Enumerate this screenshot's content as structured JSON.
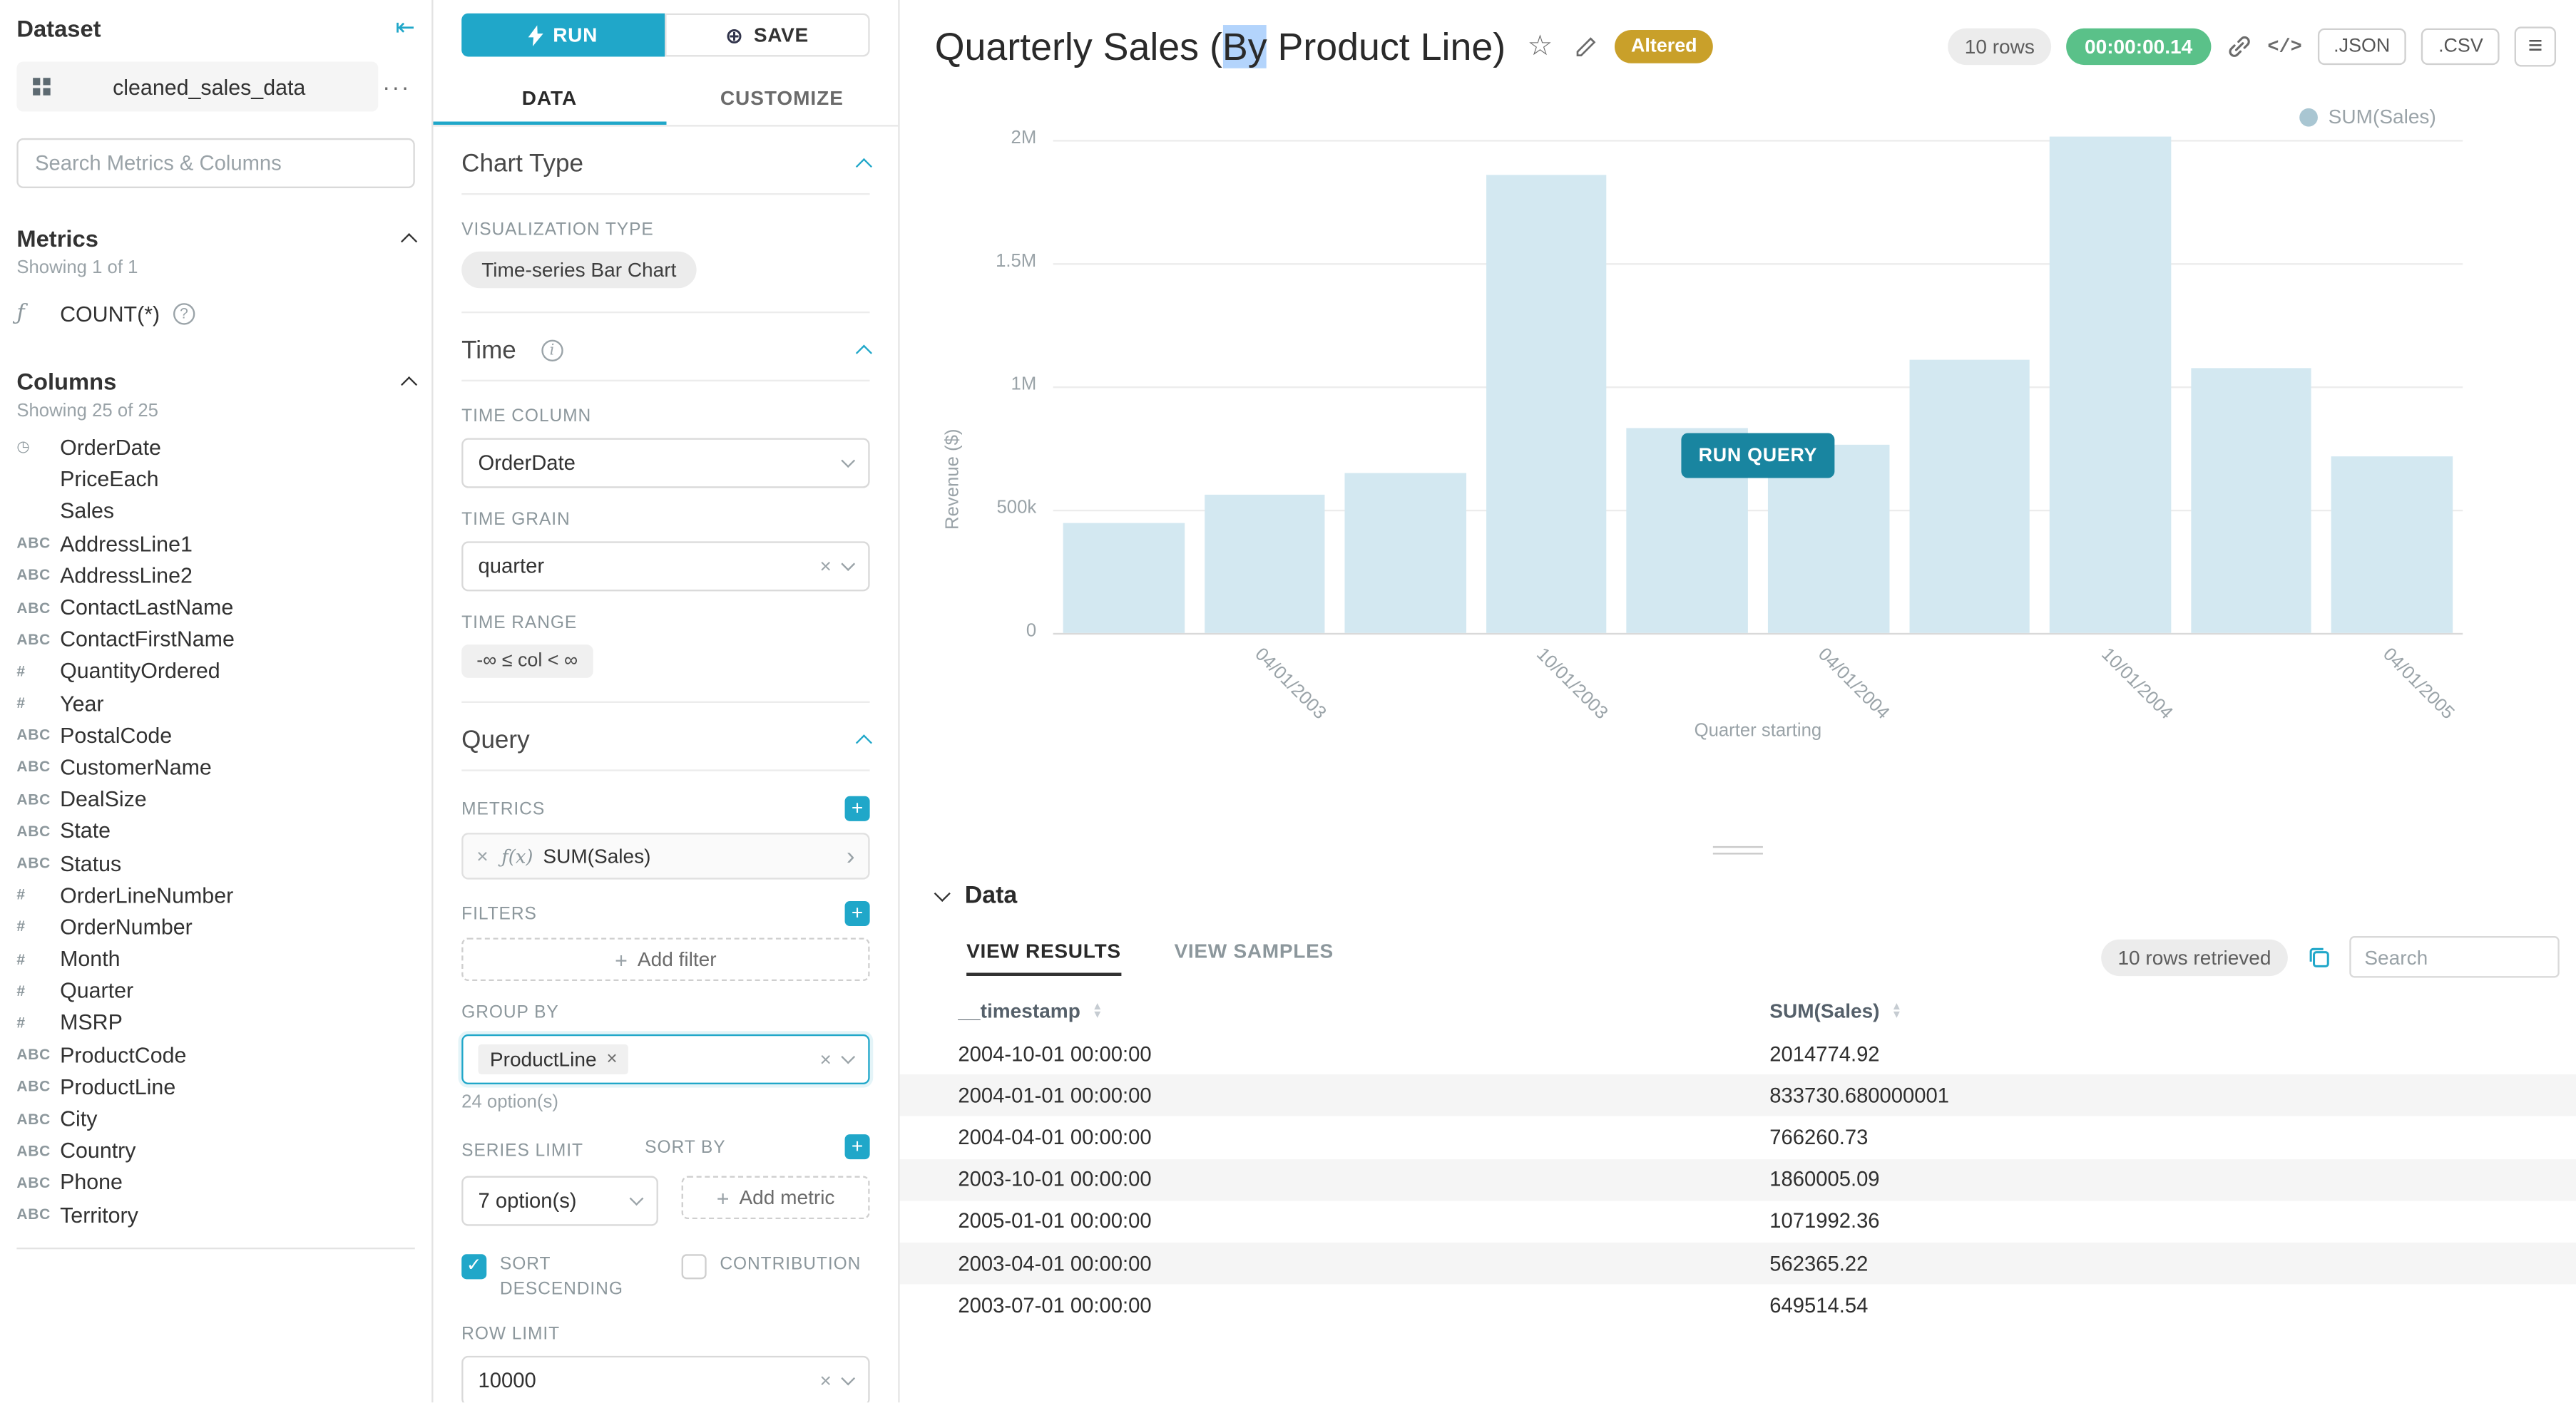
{
  "colors": {
    "primary": "#20a7c9",
    "bar_stale": "#d3e8f1",
    "altered_badge": "#c9a02a",
    "timer_badge": "#5ac189",
    "run_query_button": "#1985a0"
  },
  "dataset_panel": {
    "header": "Dataset",
    "dataset_name": "cleaned_sales_data",
    "search_placeholder": "Search Metrics & Columns",
    "metrics": {
      "header": "Metrics",
      "showing": "Showing 1 of 1",
      "items": [
        {
          "icon": "ƒ",
          "label": "COUNT(*)",
          "help": "?"
        }
      ]
    },
    "columns": {
      "header": "Columns",
      "showing": "Showing 25 of 25",
      "items": [
        {
          "icon": "◷",
          "label": "OrderDate"
        },
        {
          "icon": "",
          "label": "PriceEach"
        },
        {
          "icon": "",
          "label": "Sales"
        },
        {
          "icon": "ABC",
          "label": "AddressLine1"
        },
        {
          "icon": "ABC",
          "label": "AddressLine2"
        },
        {
          "icon": "ABC",
          "label": "ContactLastName"
        },
        {
          "icon": "ABC",
          "label": "ContactFirstName"
        },
        {
          "icon": "#",
          "label": "QuantityOrdered"
        },
        {
          "icon": "#",
          "label": "Year"
        },
        {
          "icon": "ABC",
          "label": "PostalCode"
        },
        {
          "icon": "ABC",
          "label": "CustomerName"
        },
        {
          "icon": "ABC",
          "label": "DealSize"
        },
        {
          "icon": "ABC",
          "label": "State"
        },
        {
          "icon": "ABC",
          "label": "Status"
        },
        {
          "icon": "#",
          "label": "OrderLineNumber"
        },
        {
          "icon": "#",
          "label": "OrderNumber"
        },
        {
          "icon": "#",
          "label": "Month"
        },
        {
          "icon": "#",
          "label": "Quarter"
        },
        {
          "icon": "#",
          "label": "MSRP"
        },
        {
          "icon": "ABC",
          "label": "ProductCode"
        },
        {
          "icon": "ABC",
          "label": "ProductLine"
        },
        {
          "icon": "ABC",
          "label": "City"
        },
        {
          "icon": "ABC",
          "label": "Country"
        },
        {
          "icon": "ABC",
          "label": "Phone"
        },
        {
          "icon": "ABC",
          "label": "Territory"
        }
      ]
    }
  },
  "controls": {
    "run_label": "RUN",
    "save_label": "SAVE",
    "tabs": {
      "data": "DATA",
      "customize": "CUSTOMIZE"
    },
    "chart_type": {
      "header": "Chart Type",
      "viz_type_label": "VISUALIZATION TYPE",
      "viz_type_value": "Time-series Bar Chart"
    },
    "time": {
      "header": "Time",
      "time_column_label": "TIME COLUMN",
      "time_column_value": "OrderDate",
      "time_grain_label": "TIME GRAIN",
      "time_grain_value": "quarter",
      "time_range_label": "TIME RANGE",
      "time_range_value": "-∞ ≤ col < ∞"
    },
    "query": {
      "header": "Query",
      "metrics_label": "METRICS",
      "metric_icon": "ƒ(x)",
      "metric_value": "SUM(Sales)",
      "filters_label": "FILTERS",
      "add_filter_label": "Add filter",
      "group_by_label": "GROUP BY",
      "group_by_tag": "ProductLine",
      "group_by_options": "24 option(s)",
      "series_limit_label": "SERIES LIMIT",
      "series_limit_value": "7 option(s)",
      "sort_by_label": "SORT BY",
      "add_metric_label": "Add metric",
      "sort_descending_label": "SORT DESCENDING",
      "contribution_label": "CONTRIBUTION",
      "row_limit_label": "ROW LIMIT",
      "row_limit_value": "10000"
    }
  },
  "header": {
    "title_prefix": "Quarterly Sales (",
    "title_selected": "By",
    "title_suffix": " Product Line)",
    "altered_badge": "Altered",
    "rows_badge": "10 rows",
    "timer": "00:00:00.14",
    "json_button": ".JSON",
    "csv_button": ".CSV"
  },
  "chart": {
    "run_query_label": "RUN QUERY"
  },
  "chart_data": {
    "type": "bar",
    "title": "Quarterly Sales (By Product Line)",
    "x": [
      "2003-01-01",
      "2003-04-01",
      "2003-07-01",
      "2003-10-01",
      "2004-01-01",
      "2004-04-01",
      "2004-07-01",
      "2004-10-01",
      "2005-01-01",
      "2005-04-01"
    ],
    "series": [
      {
        "name": "SUM(Sales)",
        "values": [
          445094.69,
          562365.22,
          649514.54,
          1860005.09,
          833730.68,
          766260.73,
          1109396.27,
          2014774.92,
          1071992.36,
          719494.35
        ]
      }
    ],
    "x_tick_labels": [
      "04/01/2003",
      "10/01/2003",
      "04/01/2004",
      "10/01/2004",
      "04/01/2005"
    ],
    "y_ticks": [
      "0",
      "500k",
      "1M",
      "1.5M",
      "2M"
    ],
    "ylim": [
      0,
      2000000
    ],
    "xlabel": "Quarter starting",
    "ylabel": "Revenue ($)",
    "legend": [
      "SUM(Sales)"
    ],
    "legend_position": "top-right",
    "grid": true,
    "bar_color": "#d3e8f1",
    "stale": true
  },
  "data_panel": {
    "header": "Data",
    "tabs": {
      "results": "VIEW RESULTS",
      "samples": "VIEW SAMPLES"
    },
    "rows_retrieved": "10 rows retrieved",
    "search_placeholder": "Search",
    "table": {
      "headers": [
        "__timestamp",
        "SUM(Sales)"
      ],
      "rows": [
        {
          "timestamp": "2004-10-01 00:00:00",
          "value": "2014774.92"
        },
        {
          "timestamp": "2004-01-01 00:00:00",
          "value": "833730.680000001"
        },
        {
          "timestamp": "2004-04-01 00:00:00",
          "value": "766260.73"
        },
        {
          "timestamp": "2003-10-01 00:00:00",
          "value": "1860005.09"
        },
        {
          "timestamp": "2005-01-01 00:00:00",
          "value": "1071992.36"
        },
        {
          "timestamp": "2003-04-01 00:00:00",
          "value": "562365.22"
        },
        {
          "timestamp": "2003-07-01 00:00:00",
          "value": "649514.54"
        }
      ]
    }
  }
}
